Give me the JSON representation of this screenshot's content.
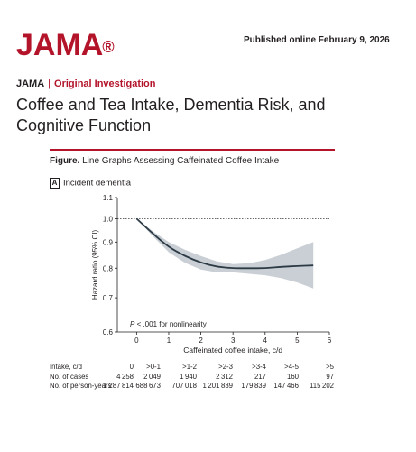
{
  "header": {
    "logo": "JAMA",
    "published": "Published online February 9, 2026"
  },
  "article": {
    "journal": "JAMA",
    "separator": "|",
    "section_type": "Original Investigation",
    "title": "Coffee and Tea Intake, Dementia Risk, and Cognitive Function"
  },
  "figure": {
    "label": "Figure.",
    "caption": "Line Graphs Assessing Caffeinated Coffee Intake",
    "panel_letter": "A",
    "panel_title": "Incident dementia",
    "annotation": "P < .001 for nonlinearity",
    "annotation_p": "P",
    "annotation_rest": " < .001 for nonlinearity"
  },
  "chart_data": {
    "type": "line",
    "title": "",
    "xlabel": "Caffeinated coffee intake, c/d",
    "ylabel": "Hazard ratio (95% CI)",
    "xlim": [
      -0.6,
      6
    ],
    "ylim": [
      0.6,
      1.1
    ],
    "x_ticks": [
      "0",
      "1",
      "2",
      "3",
      "4",
      "5",
      "6"
    ],
    "y_ticks": [
      "0.6",
      "0.7",
      "0.8",
      "0.9",
      "1.0",
      "1.1"
    ],
    "log_y": true,
    "reference_line": 1.0,
    "series": [
      {
        "x": [
          0,
          0.5,
          1,
          1.5,
          2,
          2.5,
          3,
          3.5,
          4,
          4.5,
          5,
          5.5
        ],
        "y": [
          1.0,
          0.935,
          0.88,
          0.845,
          0.82,
          0.805,
          0.8,
          0.8,
          0.8,
          0.805,
          0.808,
          0.81
        ],
        "lower": [
          1.0,
          0.925,
          0.86,
          0.82,
          0.795,
          0.785,
          0.785,
          0.78,
          0.775,
          0.765,
          0.75,
          0.73
        ],
        "upper": [
          1.0,
          0.945,
          0.9,
          0.87,
          0.845,
          0.825,
          0.815,
          0.818,
          0.83,
          0.85,
          0.875,
          0.9
        ]
      }
    ],
    "grid": false
  },
  "risk_table": {
    "rows": [
      {
        "label": "Intake, c/d",
        "values": [
          "0",
          ">0-1",
          ">1-2",
          ">2-3",
          ">3-4",
          ">4-5",
          ">5"
        ]
      },
      {
        "label": "No. of cases",
        "values": [
          "4258",
          "2049",
          "1940",
          "2312",
          "217",
          "160",
          "97"
        ]
      },
      {
        "label": "No. of person-years",
        "values": [
          "1287814",
          "688673",
          "707018",
          "1201839",
          "179839",
          "147466",
          "115202"
        ]
      }
    ]
  },
  "colors": {
    "brand": "#b3142a",
    "ci_band": "#c9cfd4",
    "line": "#2b3a44"
  }
}
